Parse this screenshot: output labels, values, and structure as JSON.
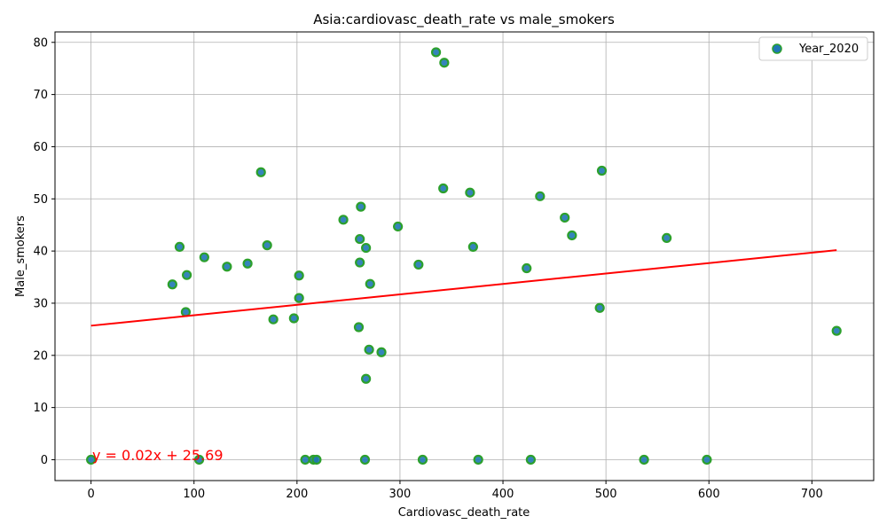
{
  "chart_data": {
    "type": "scatter",
    "title": "Asia:cardiovasc_death_rate vs male_smokers",
    "xlabel": "Cardiovasc_death_rate",
    "ylabel": "Male_smokers",
    "xlim": [
      -35,
      760
    ],
    "ylim": [
      -4,
      82
    ],
    "xticks": [
      0,
      100,
      200,
      300,
      400,
      500,
      600,
      700
    ],
    "yticks": [
      0,
      10,
      20,
      30,
      40,
      50,
      60,
      70,
      80
    ],
    "grid": true,
    "legend": {
      "placement": "top-right",
      "entries": [
        "Year_2020"
      ]
    },
    "colors": {
      "marker_fill": "#1f77b4",
      "marker_edge": "#2ca02c",
      "regression": "#ff0000",
      "annotation": "#ff0000"
    },
    "series": [
      {
        "name": "Year_2020",
        "points": [
          [
            0,
            0
          ],
          [
            79,
            33.6
          ],
          [
            86,
            40.8
          ],
          [
            92,
            28.3
          ],
          [
            93,
            35.4
          ],
          [
            105,
            0
          ],
          [
            110,
            38.8
          ],
          [
            132,
            37
          ],
          [
            152,
            37.6
          ],
          [
            165,
            55.1
          ],
          [
            171,
            41.1
          ],
          [
            177,
            26.9
          ],
          [
            197,
            27.1
          ],
          [
            202,
            31
          ],
          [
            202,
            35.3
          ],
          [
            208,
            0
          ],
          [
            216,
            0
          ],
          [
            219,
            0
          ],
          [
            245,
            46
          ],
          [
            260,
            25.4
          ],
          [
            261,
            37.8
          ],
          [
            261,
            42.3
          ],
          [
            262,
            48.5
          ],
          [
            266,
            0
          ],
          [
            267,
            15.5
          ],
          [
            267,
            40.6
          ],
          [
            270,
            21.1
          ],
          [
            271,
            33.7
          ],
          [
            282,
            20.6
          ],
          [
            298,
            44.7
          ],
          [
            318,
            37.4
          ],
          [
            322,
            0
          ],
          [
            335,
            78.1
          ],
          [
            342,
            52
          ],
          [
            343,
            76.1
          ],
          [
            368,
            51.2
          ],
          [
            371,
            40.8
          ],
          [
            376,
            0
          ],
          [
            423,
            36.7
          ],
          [
            427,
            0
          ],
          [
            436,
            50.5
          ],
          [
            460,
            46.4
          ],
          [
            467,
            43
          ],
          [
            494,
            29.1
          ],
          [
            496,
            55.4
          ],
          [
            537,
            0
          ],
          [
            559,
            42.5
          ],
          [
            598,
            0
          ],
          [
            724,
            24.7
          ]
        ]
      }
    ],
    "regression": {
      "slope": 0.02,
      "intercept": 25.69,
      "x_range": [
        0,
        724
      ],
      "label": "y = 0.02x + 25.69"
    }
  }
}
